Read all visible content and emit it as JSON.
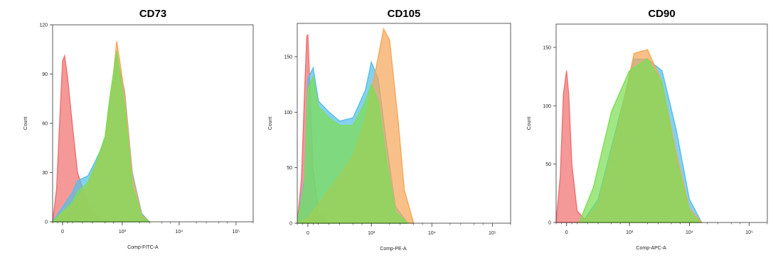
{
  "chart_data": [
    {
      "type": "area",
      "title": "CD73",
      "xlabel": "Comp-FITC-A",
      "ylabel": "Count",
      "x_scale": "biexponential",
      "xlim": [
        -100,
        200000
      ],
      "ylim": [
        0,
        120
      ],
      "y_ticks": [
        "0",
        "30",
        "60",
        "90",
        "120"
      ],
      "x_ticks": [
        "0",
        "10^3",
        "10^4",
        "10^5"
      ],
      "grid": false,
      "series": [
        {
          "color": "#f07070",
          "x": [
            -100,
            -60,
            -30,
            0,
            20,
            50,
            100,
            150,
            250,
            400,
            600,
            900
          ],
          "values": [
            0,
            20,
            60,
            98,
            101,
            88,
            58,
            30,
            10,
            2,
            0,
            0
          ]
        },
        {
          "color": "#55bfe8",
          "x": [
            -100,
            100,
            150,
            250,
            350,
            500,
            600,
            800,
            1100,
            1500,
            2200,
            3000
          ],
          "values": [
            0,
            18,
            25,
            28,
            38,
            50,
            72,
            100,
            80,
            30,
            5,
            0
          ]
        },
        {
          "color": "#f5a75a",
          "x": [
            -100,
            100,
            150,
            250,
            350,
            500,
            600,
            800,
            1100,
            1500,
            2200,
            3000
          ],
          "values": [
            0,
            10,
            15,
            22,
            35,
            48,
            68,
            110,
            78,
            28,
            4,
            0
          ]
        },
        {
          "color": "#7dde55",
          "x": [
            -100,
            100,
            150,
            250,
            350,
            500,
            600,
            800,
            1100,
            1500,
            2200,
            3000
          ],
          "values": [
            0,
            12,
            18,
            24,
            36,
            52,
            75,
            104,
            70,
            22,
            3,
            0
          ]
        }
      ]
    },
    {
      "type": "area",
      "title": "CD105",
      "xlabel": "Comp-PE-A",
      "ylabel": "Count",
      "x_scale": "biexponential",
      "xlim": [
        -100,
        200000
      ],
      "ylim": [
        0,
        180
      ],
      "y_ticks": [
        "0",
        "50",
        "100",
        "150"
      ],
      "x_ticks": [
        "0",
        "10^3",
        "10^4",
        "10^5"
      ],
      "grid": false,
      "series": [
        {
          "color": "#f07070",
          "x": [
            -100,
            -60,
            -30,
            -10,
            0,
            20,
            50,
            100,
            200
          ],
          "values": [
            0,
            40,
            120,
            168,
            170,
            120,
            50,
            10,
            0
          ]
        },
        {
          "color": "#55bfe8",
          "x": [
            -100,
            -30,
            0,
            50,
            100,
            200,
            300,
            500,
            800,
            1000,
            1300,
            1800,
            2500,
            4000
          ],
          "values": [
            0,
            40,
            130,
            140,
            110,
            100,
            92,
            95,
            120,
            145,
            130,
            70,
            15,
            0
          ]
        },
        {
          "color": "#f5a75a",
          "x": [
            -100,
            0,
            200,
            500,
            800,
            1200,
            1600,
            2000,
            2800,
            3500,
            5000
          ],
          "values": [
            0,
            5,
            30,
            60,
            95,
            140,
            175,
            165,
            90,
            30,
            0
          ]
        },
        {
          "color": "#7dde55",
          "x": [
            -100,
            -30,
            0,
            50,
            100,
            200,
            300,
            500,
            800,
            1000,
            1300,
            1800,
            2500,
            4000
          ],
          "values": [
            0,
            35,
            120,
            132,
            105,
            95,
            88,
            88,
            110,
            125,
            110,
            55,
            10,
            0
          ]
        }
      ]
    },
    {
      "type": "area",
      "title": "CD90",
      "xlabel": "Comp-APC-A",
      "ylabel": "Count",
      "x_scale": "biexponential",
      "xlim": [
        -100,
        200000
      ],
      "ylim": [
        0,
        170
      ],
      "y_ticks": [
        "0",
        "50",
        "100",
        "150"
      ],
      "x_ticks": [
        "0",
        "10^3",
        "10^4",
        "10^5"
      ],
      "grid": false,
      "series": [
        {
          "color": "#f07070",
          "x": [
            -100,
            -60,
            -30,
            0,
            20,
            50,
            100,
            200
          ],
          "values": [
            0,
            40,
            110,
            130,
            110,
            50,
            10,
            0
          ]
        },
        {
          "color": "#55bfe8",
          "x": [
            150,
            300,
            600,
            1200,
            2000,
            3500,
            6000,
            10000,
            16000
          ],
          "values": [
            0,
            20,
            80,
            140,
            140,
            130,
            80,
            20,
            0
          ]
        },
        {
          "color": "#f5a75a",
          "x": [
            150,
            300,
            600,
            1200,
            2000,
            3500,
            6000,
            10000,
            16000
          ],
          "values": [
            0,
            15,
            75,
            145,
            148,
            120,
            60,
            12,
            0
          ]
        },
        {
          "color": "#7dde55",
          "x": [
            120,
            250,
            500,
            1000,
            2000,
            3500,
            6000,
            10000,
            15000
          ],
          "values": [
            0,
            30,
            95,
            130,
            140,
            120,
            55,
            10,
            0
          ]
        }
      ]
    }
  ]
}
